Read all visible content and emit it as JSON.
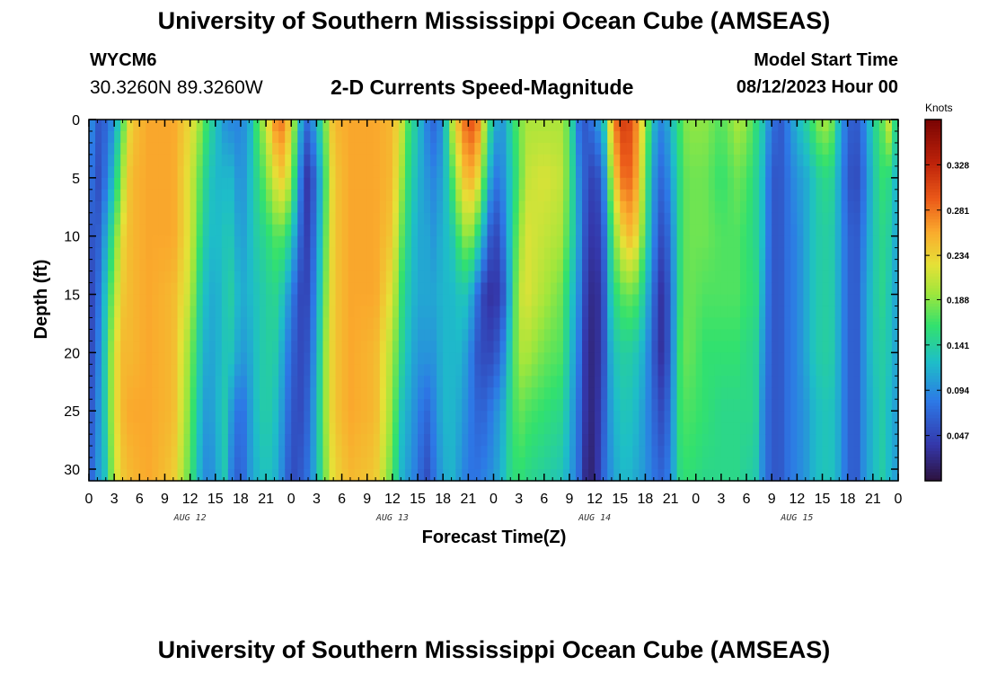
{
  "header": {
    "title_top": "University of Southern Mississippi Ocean Cube (AMSEAS)",
    "title_bottom": "University of Southern Mississippi Ocean Cube (AMSEAS)",
    "station_id": "WYCM6",
    "coordinates": "30.3260N  89.3260W",
    "subtitle": "2-D Currents Speed-Magnitude",
    "model_start_label": "Model Start Time",
    "model_start_value": "08/12/2023 Hour 00"
  },
  "chart_data": {
    "type": "heatmap",
    "title": "2-D Currents Speed-Magnitude",
    "xlabel": "Forecast Time(Z)",
    "ylabel": "Depth (ft)",
    "units_label": "Knots",
    "xlim": [
      0,
      96
    ],
    "ylim": [
      0,
      31
    ],
    "x_ticks": [
      0,
      3,
      6,
      9,
      12,
      15,
      18,
      21,
      24,
      27,
      30,
      33,
      36,
      39,
      42,
      45,
      48,
      51,
      54,
      57,
      60,
      63,
      66,
      69,
      72,
      75,
      78,
      81,
      84,
      87,
      90,
      93,
      96
    ],
    "x_tick_labels": [
      "0",
      "3",
      "6",
      "9",
      "12",
      "15",
      "18",
      "21",
      "0",
      "3",
      "6",
      "9",
      "12",
      "15",
      "18",
      "21",
      "0",
      "3",
      "6",
      "9",
      "12",
      "15",
      "18",
      "21",
      "0",
      "3",
      "6",
      "9",
      "12",
      "15",
      "18",
      "21",
      "0"
    ],
    "y_ticks": [
      0,
      5,
      10,
      15,
      20,
      25,
      30
    ],
    "y_tick_labels": [
      "0",
      "5",
      "10",
      "15",
      "20",
      "25",
      "30"
    ],
    "day_labels": [
      {
        "hour": 12,
        "label": "AUG 12"
      },
      {
        "hour": 36,
        "label": "AUG 13"
      },
      {
        "hour": 60,
        "label": "AUG 14"
      },
      {
        "hour": 84,
        "label": "AUG 15"
      }
    ],
    "colorbar": {
      "min": 0.0,
      "max": 0.375,
      "ticks": [
        0.047,
        0.094,
        0.141,
        0.188,
        0.234,
        0.281,
        0.328
      ],
      "tick_labels": [
        "0.047",
        "0.094",
        "0.141",
        "0.188",
        "0.234",
        "0.281",
        "0.328"
      ]
    },
    "profile_depths_ft": [
      0,
      5,
      10,
      15,
      20,
      25,
      31
    ],
    "profiles": [
      {
        "hour": 0,
        "speeds": [
          0.11,
          0.09,
          0.06,
          0.04,
          0.04,
          0.05,
          0.06
        ]
      },
      {
        "hour": 1,
        "speeds": [
          0.06,
          0.05,
          0.06,
          0.07,
          0.08,
          0.09,
          0.1
        ]
      },
      {
        "hour": 2,
        "speeds": [
          0.07,
          0.08,
          0.11,
          0.13,
          0.14,
          0.14,
          0.13
        ]
      },
      {
        "hour": 3,
        "speeds": [
          0.1,
          0.13,
          0.17,
          0.2,
          0.22,
          0.22,
          0.21
        ]
      },
      {
        "hour": 4,
        "speeds": [
          0.17,
          0.2,
          0.23,
          0.24,
          0.25,
          0.25,
          0.24
        ]
      },
      {
        "hour": 5,
        "speeds": [
          0.24,
          0.25,
          0.25,
          0.25,
          0.25,
          0.26,
          0.25
        ]
      },
      {
        "hour": 7,
        "speeds": [
          0.26,
          0.26,
          0.26,
          0.26,
          0.26,
          0.26,
          0.26
        ]
      },
      {
        "hour": 10,
        "speeds": [
          0.26,
          0.26,
          0.26,
          0.25,
          0.25,
          0.25,
          0.24
        ]
      },
      {
        "hour": 12,
        "speeds": [
          0.23,
          0.22,
          0.22,
          0.21,
          0.19,
          0.18,
          0.17
        ]
      },
      {
        "hour": 13,
        "speeds": [
          0.2,
          0.18,
          0.17,
          0.15,
          0.14,
          0.13,
          0.12
        ]
      },
      {
        "hour": 14,
        "speeds": [
          0.16,
          0.14,
          0.13,
          0.12,
          0.11,
          0.1,
          0.09
        ]
      },
      {
        "hour": 15,
        "speeds": [
          0.13,
          0.12,
          0.12,
          0.11,
          0.11,
          0.11,
          0.1
        ]
      },
      {
        "hour": 16,
        "speeds": [
          0.1,
          0.12,
          0.13,
          0.13,
          0.13,
          0.14,
          0.14
        ]
      },
      {
        "hour": 17,
        "speeds": [
          0.09,
          0.12,
          0.13,
          0.14,
          0.13,
          0.1,
          0.08
        ]
      },
      {
        "hour": 18,
        "speeds": [
          0.09,
          0.09,
          0.1,
          0.11,
          0.1,
          0.07,
          0.06
        ]
      },
      {
        "hour": 19,
        "speeds": [
          0.11,
          0.12,
          0.12,
          0.12,
          0.11,
          0.1,
          0.1
        ]
      },
      {
        "hour": 20,
        "speeds": [
          0.17,
          0.15,
          0.14,
          0.13,
          0.13,
          0.13,
          0.12
        ]
      },
      {
        "hour": 21,
        "speeds": [
          0.21,
          0.18,
          0.15,
          0.14,
          0.14,
          0.14,
          0.13
        ]
      },
      {
        "hour": 22,
        "speeds": [
          0.27,
          0.22,
          0.17,
          0.15,
          0.14,
          0.13,
          0.12
        ]
      },
      {
        "hour": 23,
        "speeds": [
          0.28,
          0.24,
          0.17,
          0.13,
          0.11,
          0.1,
          0.09
        ]
      },
      {
        "hour": 24,
        "speeds": [
          0.23,
          0.2,
          0.14,
          0.09,
          0.07,
          0.06,
          0.05
        ]
      },
      {
        "hour": 25,
        "speeds": [
          0.12,
          0.09,
          0.07,
          0.05,
          0.05,
          0.05,
          0.06
        ]
      },
      {
        "hour": 26,
        "speeds": [
          0.07,
          0.03,
          0.04,
          0.05,
          0.06,
          0.07,
          0.08
        ]
      },
      {
        "hour": 27,
        "speeds": [
          0.12,
          0.08,
          0.09,
          0.1,
          0.11,
          0.12,
          0.12
        ]
      },
      {
        "hour": 28,
        "speeds": [
          0.18,
          0.16,
          0.17,
          0.18,
          0.19,
          0.19,
          0.18
        ]
      },
      {
        "hour": 29,
        "speeds": [
          0.25,
          0.24,
          0.24,
          0.24,
          0.24,
          0.24,
          0.23
        ]
      },
      {
        "hour": 31,
        "speeds": [
          0.26,
          0.26,
          0.26,
          0.26,
          0.26,
          0.26,
          0.25
        ]
      },
      {
        "hour": 34,
        "speeds": [
          0.26,
          0.26,
          0.26,
          0.26,
          0.25,
          0.25,
          0.24
        ]
      },
      {
        "hour": 36,
        "speeds": [
          0.25,
          0.25,
          0.24,
          0.22,
          0.2,
          0.19,
          0.17
        ]
      },
      {
        "hour": 37,
        "speeds": [
          0.22,
          0.2,
          0.18,
          0.16,
          0.15,
          0.13,
          0.12
        ]
      },
      {
        "hour": 38,
        "speeds": [
          0.16,
          0.15,
          0.14,
          0.13,
          0.12,
          0.11,
          0.1
        ]
      },
      {
        "hour": 39,
        "speeds": [
          0.13,
          0.12,
          0.11,
          0.11,
          0.1,
          0.09,
          0.08
        ]
      },
      {
        "hour": 40,
        "speeds": [
          0.09,
          0.1,
          0.11,
          0.11,
          0.1,
          0.07,
          0.05
        ]
      },
      {
        "hour": 41,
        "speeds": [
          0.07,
          0.09,
          0.1,
          0.11,
          0.1,
          0.09,
          0.08
        ]
      },
      {
        "hour": 42,
        "speeds": [
          0.1,
          0.11,
          0.12,
          0.12,
          0.12,
          0.12,
          0.11
        ]
      },
      {
        "hour": 43,
        "speeds": [
          0.2,
          0.16,
          0.13,
          0.12,
          0.12,
          0.12,
          0.12
        ]
      },
      {
        "hour": 44,
        "speeds": [
          0.26,
          0.22,
          0.17,
          0.13,
          0.12,
          0.11,
          0.1
        ]
      },
      {
        "hour": 45,
        "speeds": [
          0.3,
          0.26,
          0.2,
          0.13,
          0.1,
          0.09,
          0.08
        ]
      },
      {
        "hour": 46,
        "speeds": [
          0.29,
          0.24,
          0.16,
          0.08,
          0.06,
          0.07,
          0.08
        ]
      },
      {
        "hour": 47,
        "speeds": [
          0.2,
          0.16,
          0.1,
          0.04,
          0.05,
          0.07,
          0.09
        ]
      },
      {
        "hour": 48,
        "speeds": [
          0.12,
          0.08,
          0.04,
          0.03,
          0.05,
          0.09,
          0.1
        ]
      },
      {
        "hour": 49,
        "speeds": [
          0.1,
          0.09,
          0.07,
          0.05,
          0.08,
          0.11,
          0.12
        ]
      },
      {
        "hour": 50,
        "speeds": [
          0.14,
          0.13,
          0.13,
          0.12,
          0.14,
          0.15,
          0.15
        ]
      },
      {
        "hour": 51,
        "speeds": [
          0.18,
          0.17,
          0.19,
          0.21,
          0.2,
          0.18,
          0.16
        ]
      },
      {
        "hour": 52,
        "speeds": [
          0.2,
          0.21,
          0.22,
          0.22,
          0.2,
          0.17,
          0.15
        ]
      },
      {
        "hour": 54,
        "speeds": [
          0.2,
          0.22,
          0.21,
          0.2,
          0.18,
          0.16,
          0.14
        ]
      },
      {
        "hour": 56,
        "speeds": [
          0.2,
          0.21,
          0.2,
          0.18,
          0.17,
          0.15,
          0.13
        ]
      },
      {
        "hour": 57,
        "speeds": [
          0.17,
          0.17,
          0.16,
          0.14,
          0.13,
          0.12,
          0.11
        ]
      },
      {
        "hour": 58,
        "speeds": [
          0.08,
          0.1,
          0.11,
          0.1,
          0.09,
          0.08,
          0.08
        ]
      },
      {
        "hour": 59,
        "speeds": [
          0.06,
          0.06,
          0.05,
          0.04,
          0.03,
          0.03,
          0.02
        ]
      },
      {
        "hour": 60,
        "speeds": [
          0.09,
          0.04,
          0.03,
          0.02,
          0.02,
          0.02,
          0.02
        ]
      },
      {
        "hour": 61,
        "speeds": [
          0.12,
          0.08,
          0.06,
          0.05,
          0.05,
          0.06,
          0.07
        ]
      },
      {
        "hour": 62,
        "speeds": [
          0.25,
          0.2,
          0.16,
          0.14,
          0.12,
          0.11,
          0.1
        ]
      },
      {
        "hour": 63,
        "speeds": [
          0.31,
          0.28,
          0.22,
          0.17,
          0.14,
          0.13,
          0.12
        ]
      },
      {
        "hour": 64,
        "speeds": [
          0.31,
          0.29,
          0.25,
          0.18,
          0.14,
          0.13,
          0.12
        ]
      },
      {
        "hour": 65,
        "speeds": [
          0.27,
          0.26,
          0.23,
          0.17,
          0.13,
          0.12,
          0.11
        ]
      },
      {
        "hour": 66,
        "speeds": [
          0.2,
          0.18,
          0.16,
          0.13,
          0.11,
          0.1,
          0.1
        ]
      },
      {
        "hour": 67,
        "speeds": [
          0.12,
          0.1,
          0.09,
          0.07,
          0.06,
          0.07,
          0.08
        ]
      },
      {
        "hour": 68,
        "speeds": [
          0.09,
          0.07,
          0.05,
          0.03,
          0.03,
          0.05,
          0.07
        ]
      },
      {
        "hour": 69,
        "speeds": [
          0.12,
          0.1,
          0.08,
          0.07,
          0.07,
          0.08,
          0.09
        ]
      },
      {
        "hour": 70,
        "speeds": [
          0.16,
          0.15,
          0.15,
          0.15,
          0.16,
          0.16,
          0.15
        ]
      },
      {
        "hour": 71,
        "speeds": [
          0.19,
          0.18,
          0.18,
          0.18,
          0.18,
          0.17,
          0.16
        ]
      },
      {
        "hour": 73,
        "speeds": [
          0.19,
          0.18,
          0.18,
          0.17,
          0.16,
          0.16,
          0.15
        ]
      },
      {
        "hour": 75,
        "speeds": [
          0.17,
          0.16,
          0.17,
          0.17,
          0.16,
          0.15,
          0.15
        ]
      },
      {
        "hour": 77,
        "speeds": [
          0.2,
          0.18,
          0.17,
          0.17,
          0.16,
          0.15,
          0.15
        ]
      },
      {
        "hour": 78,
        "speeds": [
          0.19,
          0.17,
          0.16,
          0.16,
          0.15,
          0.15,
          0.14
        ]
      },
      {
        "hour": 79,
        "speeds": [
          0.16,
          0.15,
          0.15,
          0.16,
          0.15,
          0.15,
          0.14
        ]
      },
      {
        "hour": 80,
        "speeds": [
          0.13,
          0.12,
          0.12,
          0.11,
          0.1,
          0.09,
          0.09
        ]
      },
      {
        "hour": 81,
        "speeds": [
          0.08,
          0.06,
          0.06,
          0.06,
          0.06,
          0.06,
          0.06
        ]
      },
      {
        "hour": 82,
        "speeds": [
          0.06,
          0.06,
          0.06,
          0.06,
          0.06,
          0.06,
          0.06
        ]
      },
      {
        "hour": 83,
        "speeds": [
          0.09,
          0.08,
          0.08,
          0.08,
          0.08,
          0.08,
          0.08
        ]
      },
      {
        "hour": 84,
        "speeds": [
          0.12,
          0.1,
          0.09,
          0.09,
          0.09,
          0.09,
          0.09
        ]
      },
      {
        "hour": 85,
        "speeds": [
          0.14,
          0.11,
          0.11,
          0.11,
          0.11,
          0.1,
          0.1
        ]
      },
      {
        "hour": 86,
        "speeds": [
          0.17,
          0.13,
          0.13,
          0.13,
          0.13,
          0.12,
          0.12
        ]
      },
      {
        "hour": 87,
        "speeds": [
          0.2,
          0.15,
          0.14,
          0.14,
          0.14,
          0.13,
          0.13
        ]
      },
      {
        "hour": 88,
        "speeds": [
          0.19,
          0.15,
          0.14,
          0.14,
          0.14,
          0.13,
          0.13
        ]
      },
      {
        "hour": 89,
        "speeds": [
          0.12,
          0.11,
          0.11,
          0.11,
          0.11,
          0.11,
          0.11
        ]
      },
      {
        "hour": 90,
        "speeds": [
          0.07,
          0.06,
          0.07,
          0.07,
          0.07,
          0.07,
          0.07
        ]
      },
      {
        "hour": 91,
        "speeds": [
          0.06,
          0.05,
          0.06,
          0.06,
          0.06,
          0.06,
          0.06
        ]
      },
      {
        "hour": 92,
        "speeds": [
          0.09,
          0.08,
          0.09,
          0.1,
          0.1,
          0.1,
          0.1
        ]
      },
      {
        "hour": 93,
        "speeds": [
          0.14,
          0.13,
          0.13,
          0.13,
          0.13,
          0.12,
          0.12
        ]
      },
      {
        "hour": 94,
        "speeds": [
          0.17,
          0.16,
          0.15,
          0.15,
          0.14,
          0.14,
          0.14
        ]
      },
      {
        "hour": 95,
        "speeds": [
          0.22,
          0.15,
          0.14,
          0.13,
          0.13,
          0.12,
          0.12
        ]
      },
      {
        "hour": 96,
        "speeds": [
          0.12,
          0.11,
          0.1,
          0.1,
          0.1,
          0.1,
          0.1
        ]
      }
    ]
  }
}
